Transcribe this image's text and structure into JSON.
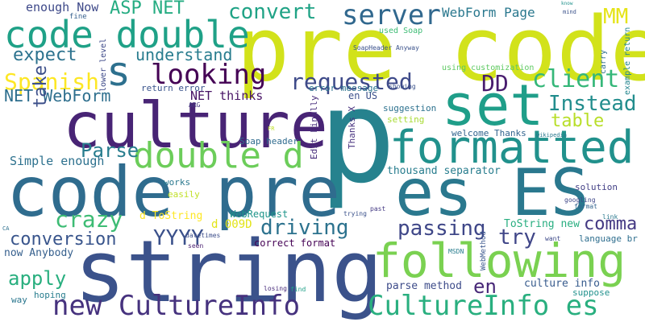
{
  "words": [
    {
      "text": "pre code",
      "color": "#d2e21b"
    },
    {
      "text": "culture",
      "color": "#482475"
    },
    {
      "text": "p",
      "color": "#26828e"
    },
    {
      "text": "code pre",
      "color": "#2f6c8e"
    },
    {
      "text": "string",
      "color": "#3b528b"
    },
    {
      "text": "es ES",
      "color": "#2a788e"
    },
    {
      "text": "set",
      "color": "#1f9e89"
    },
    {
      "text": "following",
      "color": "#7ad151"
    },
    {
      "text": "formatted",
      "color": "#21918c"
    },
    {
      "text": "code double",
      "color": "#1fa187"
    },
    {
      "text": "CultureInfo es",
      "color": "#29af7f"
    },
    {
      "text": "new CultureInfo",
      "color": "#46327e"
    },
    {
      "text": "double d",
      "color": "#6ccd5a"
    },
    {
      "text": "s",
      "color": "#2d708e"
    },
    {
      "text": "server",
      "color": "#31688e"
    },
    {
      "text": "requested",
      "color": "#3e4a89"
    },
    {
      "text": "client",
      "color": "#35b779"
    },
    {
      "text": "Instead",
      "color": "#228d8d"
    },
    {
      "text": "looking",
      "color": "#440154"
    },
    {
      "text": "convert",
      "color": "#20a386"
    },
    {
      "text": "Spanish",
      "color": "#fde725"
    },
    {
      "text": "Parse",
      "color": "#287d8e"
    },
    {
      "text": "table",
      "color": "#b8de29"
    },
    {
      "text": "driving",
      "color": "#2c728e"
    },
    {
      "text": "passing",
      "color": "#3f4788"
    },
    {
      "text": "crazy",
      "color": "#3dbc74"
    },
    {
      "text": "expect",
      "color": "#2c728e"
    },
    {
      "text": "understand",
      "color": "#287c8e"
    },
    {
      "text": "conversion",
      "color": "#39558c"
    },
    {
      "text": "YYYY",
      "color": "#3b518b"
    },
    {
      "text": "comma",
      "color": "#443983"
    },
    {
      "text": "DD",
      "color": "#481c6e"
    },
    {
      "text": "MM",
      "color": "#e5e419"
    },
    {
      "text": "try",
      "color": "#404688"
    },
    {
      "text": "ASP NET",
      "color": "#25ac82"
    },
    {
      "text": "NET WebForm",
      "color": "#2e6f8e"
    },
    {
      "text": "apply",
      "color": "#29af7f"
    },
    {
      "text": "en",
      "color": "#482878"
    },
    {
      "text": "take",
      "color": "#3c4f8a"
    },
    {
      "text": "WebForm Page",
      "color": "#2a788e"
    },
    {
      "text": "enough Now",
      "color": "#3e4989"
    },
    {
      "text": "Simple enough",
      "color": "#2d718e"
    },
    {
      "text": "now Anybody",
      "color": "#355f8d"
    },
    {
      "text": "NET thinks",
      "color": "#471365"
    },
    {
      "text": "d ToString",
      "color": "#fde725"
    },
    {
      "text": "d 009D",
      "color": "#e2e418"
    },
    {
      "text": "WebRequest",
      "color": "#1f958b"
    },
    {
      "text": "correct format",
      "color": "#440154"
    },
    {
      "text": "culture info",
      "color": "#375b8d"
    },
    {
      "text": "parse method",
      "color": "#3e4c8a"
    },
    {
      "text": "ToString new",
      "color": "#28ae80"
    },
    {
      "text": "thousand separator",
      "color": "#287d8e"
    },
    {
      "text": "welcome Thanks",
      "color": "#32648e"
    },
    {
      "text": "suggestion",
      "color": "#2c718e"
    },
    {
      "text": "setting",
      "color": "#a8db34"
    },
    {
      "text": "en US",
      "color": "#3c508b"
    },
    {
      "text": "solution",
      "color": "#423f85"
    },
    {
      "text": "Soap header",
      "color": "#2f6b8e"
    },
    {
      "text": "return error",
      "color": "#3a548c"
    },
    {
      "text": "error message",
      "color": "#2c738e"
    },
    {
      "text": "Thanks X",
      "color": "#46307e"
    },
    {
      "text": "Edit Finally",
      "color": "#472d7b"
    },
    {
      "text": "works",
      "color": "#2a788e"
    },
    {
      "text": "easily",
      "color": "#c0df25"
    },
    {
      "text": "language br",
      "color": "#2e6e8e"
    },
    {
      "text": "hoping",
      "color": "#287d8e"
    },
    {
      "text": "way",
      "color": "#2a768e"
    },
    {
      "text": "suppose",
      "color": "#21918c"
    },
    {
      "text": "lower level",
      "color": "#3e4a89"
    },
    {
      "text": "carry",
      "color": "#2e6e8e"
    },
    {
      "text": "example return",
      "color": "#24868e"
    },
    {
      "text": "used Soap",
      "color": "#3dbc74"
    },
    {
      "text": "SoapHeader Anyway",
      "color": "#3b528b"
    },
    {
      "text": "using customization",
      "color": "#5ec962"
    },
    {
      "text": "fine",
      "color": "#355f8d"
    },
    {
      "text": "WebMethod",
      "color": "#39568c"
    },
    {
      "text": "ARG",
      "color": "#453882"
    },
    {
      "text": "losing",
      "color": "#472a7a"
    },
    {
      "text": "showing",
      "color": "#3b528b"
    },
    {
      "text": "googling",
      "color": "#3f4788"
    },
    {
      "text": "format",
      "color": "#32648e"
    },
    {
      "text": "link",
      "color": "#2a788e"
    },
    {
      "text": "want",
      "color": "#3e4a89"
    },
    {
      "text": "MSDN",
      "color": "#287d8e"
    },
    {
      "text": "find",
      "color": "#1fa088"
    },
    {
      "text": "seen",
      "color": "#481f70"
    },
    {
      "text": "datetimes",
      "color": "#3d4e8a"
    },
    {
      "text": "CA",
      "color": "#2d708e"
    },
    {
      "text": "trying",
      "color": "#3b528b"
    },
    {
      "text": "past",
      "color": "#443a83"
    },
    {
      "text": "wikipedia",
      "color": "#2a788e"
    },
    {
      "text": "mind",
      "color": "#3b528b"
    },
    {
      "text": "know",
      "color": "#21918c"
    },
    {
      "text": "FR",
      "color": "#bddf26"
    }
  ]
}
